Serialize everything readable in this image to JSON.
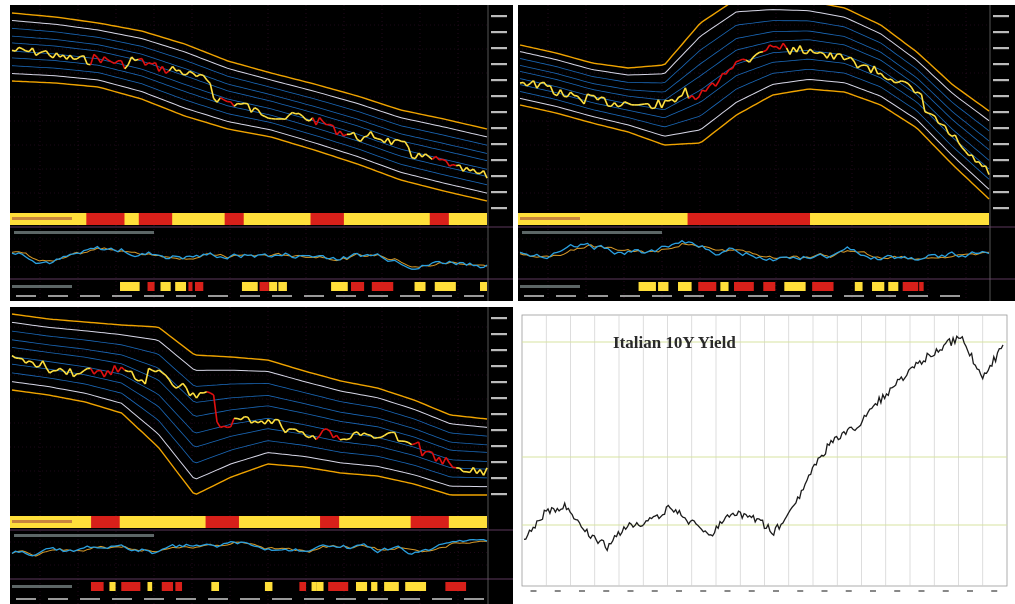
{
  "chart_data": [
    {
      "type": "line",
      "panel": "top-left",
      "colors": {
        "band": "#f0a400",
        "inner": "#d8d8e8",
        "blue": "#1e7ad8",
        "price": "#ffe040",
        "price_down": "#e01010",
        "osc_blue": "#2aa0e0",
        "osc_orange": "#d89a28"
      }
    },
    {
      "type": "line",
      "panel": "top-right",
      "colors": {
        "band": "#f0a400",
        "inner": "#d8d8e8",
        "blue": "#1e7ad8",
        "price": "#ffe040",
        "price_down": "#e01010"
      }
    },
    {
      "type": "line",
      "panel": "bottom-left",
      "colors": {
        "band": "#f0a400",
        "inner": "#d8d8e8",
        "blue": "#1e7ad8",
        "price": "#ffe040",
        "price_down": "#e01010"
      }
    },
    {
      "type": "line",
      "panel": "bottom-right",
      "title": "Italian 10Y Yield",
      "grid": true,
      "colors": {
        "line": "#1a1a1a",
        "grid": "#cfcfcf",
        "hline": "#d7e3a0"
      }
    }
  ]
}
